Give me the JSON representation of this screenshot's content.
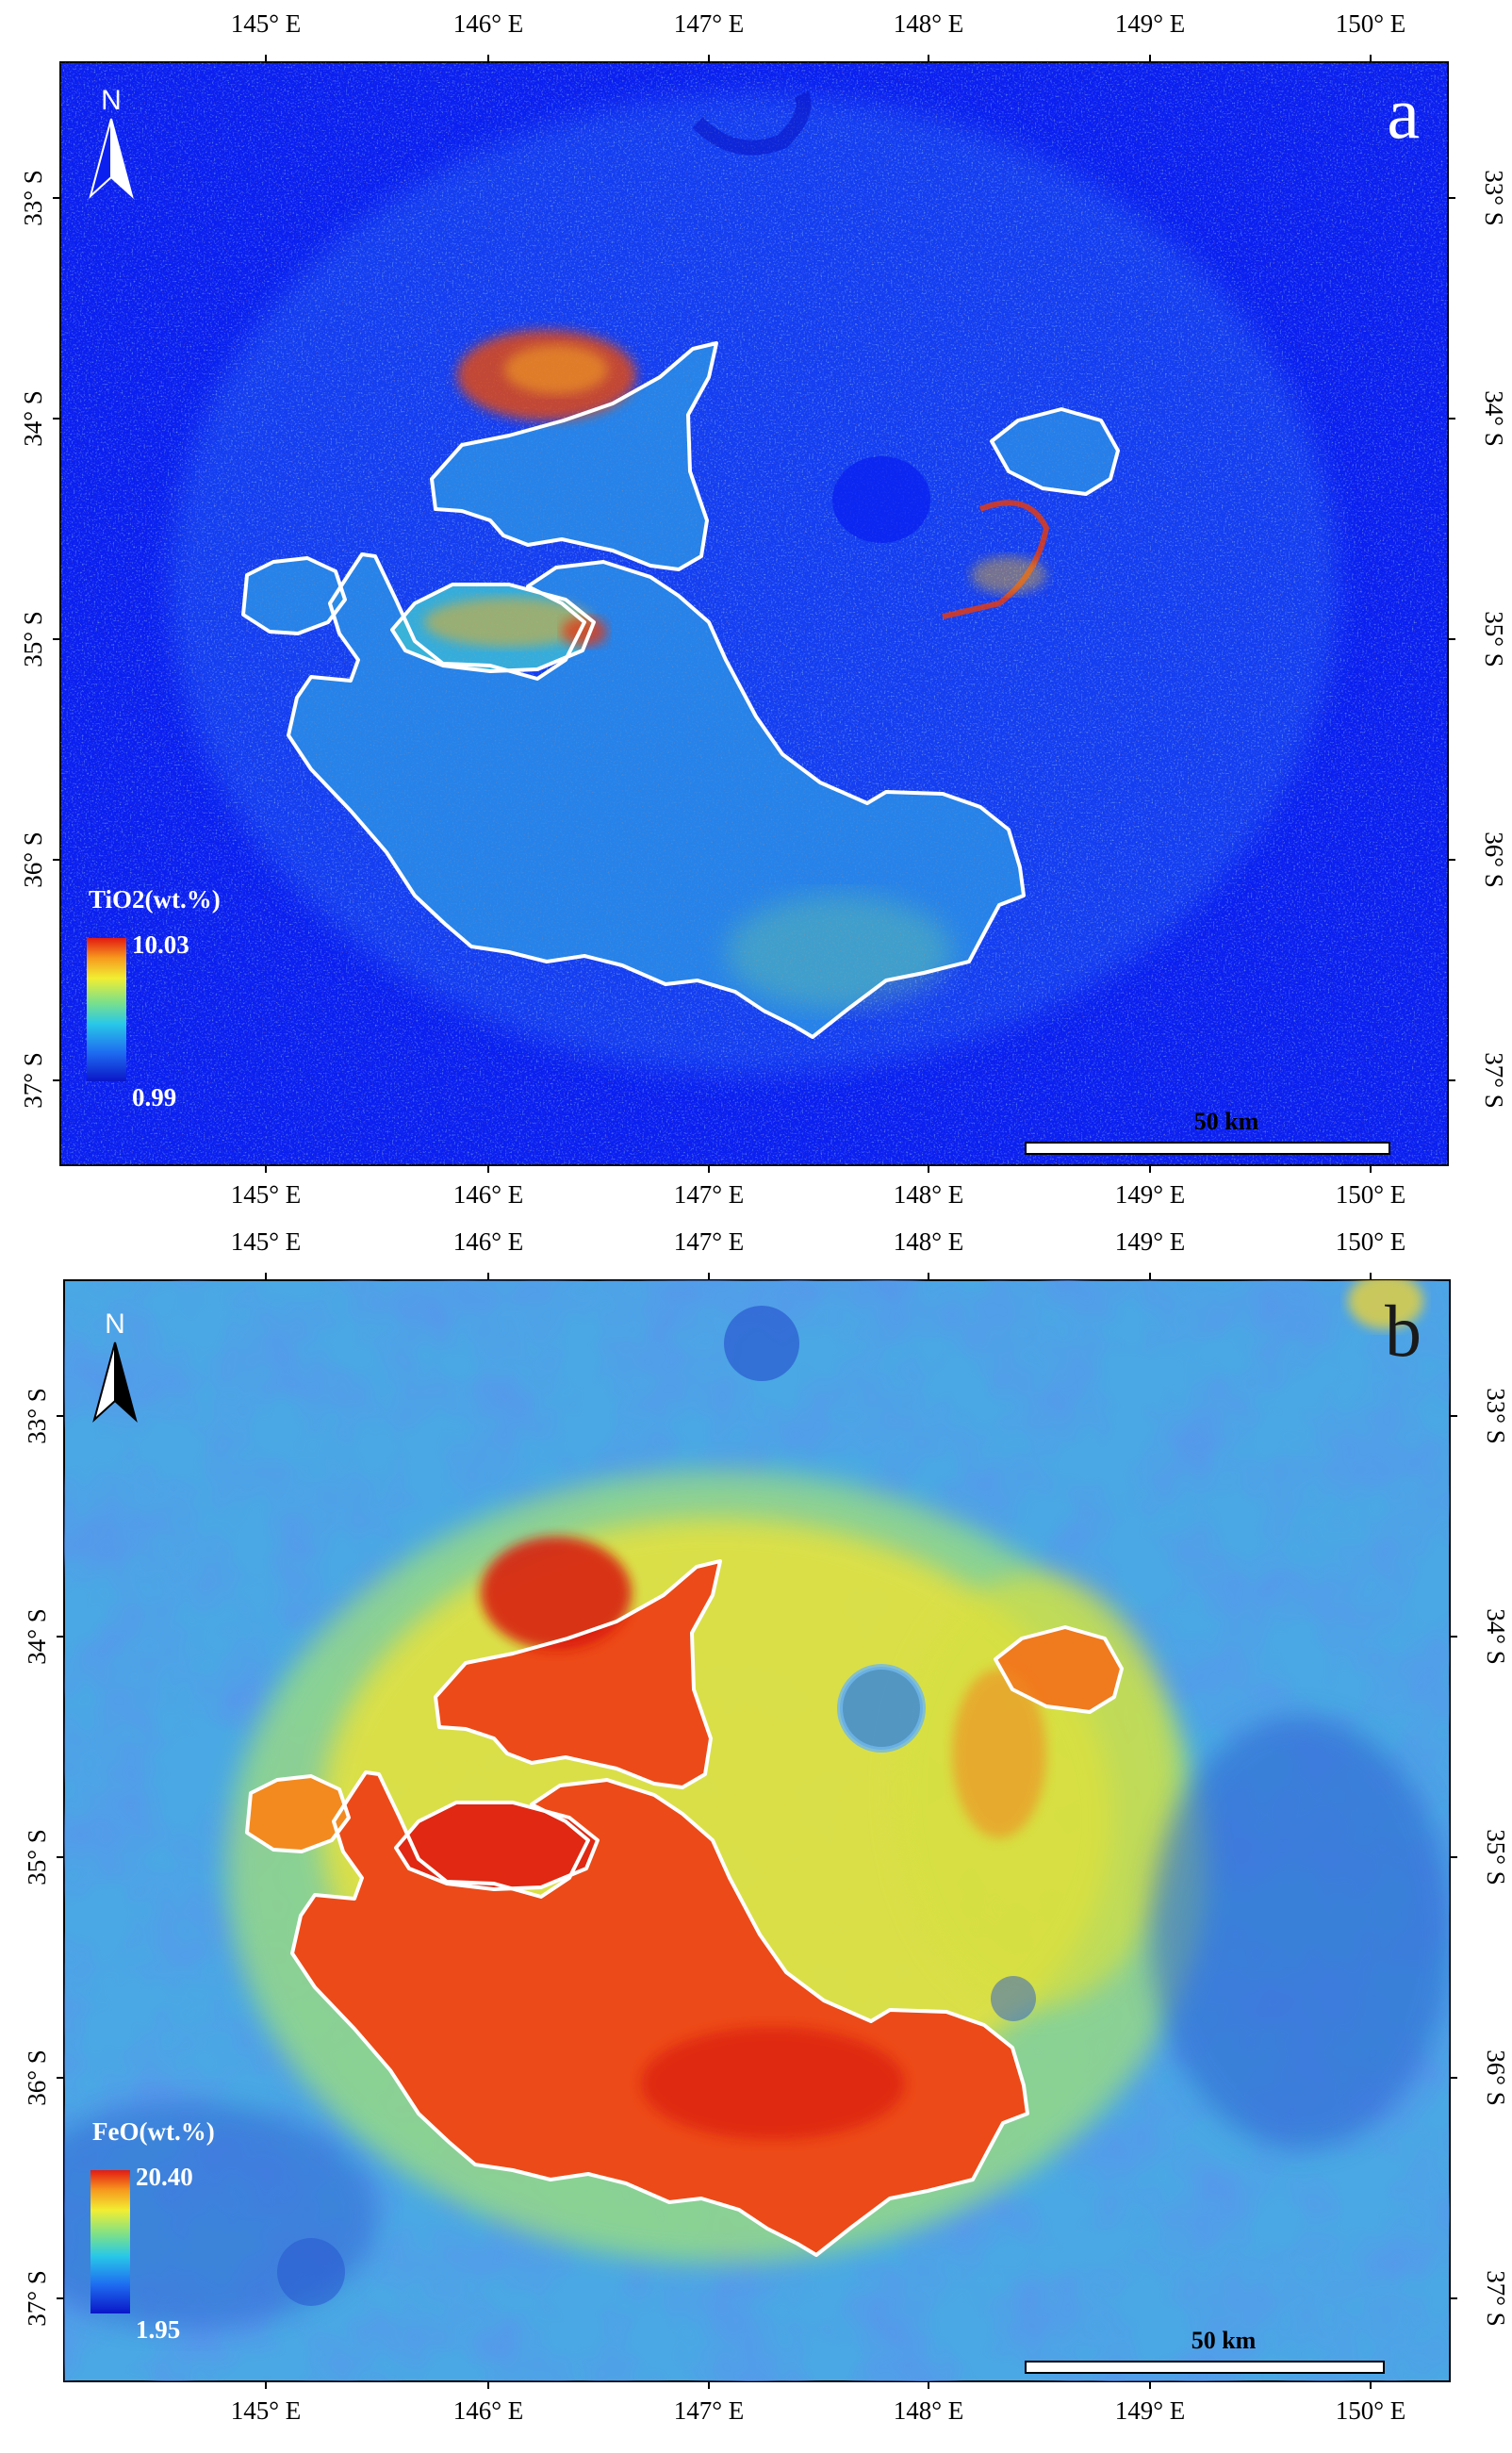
{
  "maps": [
    {
      "panel": "a",
      "legend": {
        "title": "TiO2(wt.%)",
        "max": "10.03",
        "min": "0.99"
      },
      "scale_bar": "50 km",
      "north": "N",
      "lon_ticks": [
        "145° E",
        "146° E",
        "147° E",
        "148° E",
        "149° E",
        "150° E"
      ],
      "lat_ticks": [
        "33° S",
        "34° S",
        "35° S",
        "36° S",
        "37° S"
      ],
      "colors": {
        "background": "#0a1ff0",
        "mare": "#2aa6e6",
        "hot": "#e03a14",
        "boundary": "#ffffff"
      }
    },
    {
      "panel": "b",
      "legend": {
        "title": "FeO(wt.%)",
        "max": "20.40",
        "min": "1.95"
      },
      "scale_bar": "50 km",
      "north": "N",
      "lon_ticks": [
        "145° E",
        "146° E",
        "147° E",
        "148° E",
        "149° E",
        "150° E"
      ],
      "lat_ticks": [
        "33° S",
        "34° S",
        "35° S",
        "36° S",
        "37° S"
      ],
      "colors": {
        "background": "#52b8e8",
        "highland": "#e4e23e",
        "mare": "#ec4418",
        "boundary": "#ffffff"
      }
    }
  ],
  "colormap": [
    "#0a16c8",
    "#1e6cf0",
    "#28c8e8",
    "#7ce08a",
    "#f2ee32",
    "#f79a1e",
    "#e31a12"
  ]
}
